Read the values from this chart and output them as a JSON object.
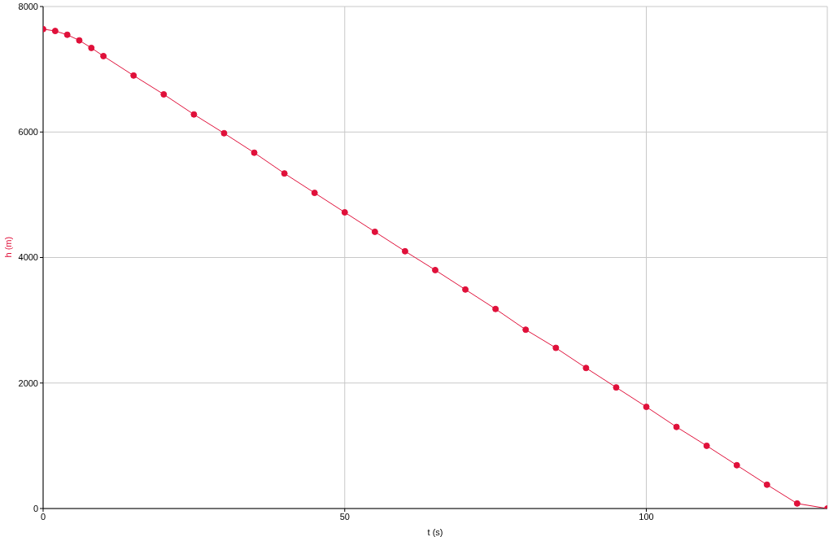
{
  "chart_data": {
    "type": "line",
    "xlabel": "t (s)",
    "ylabel": "h (m)",
    "x": [
      0,
      2,
      4,
      6,
      8,
      10,
      15,
      20,
      25,
      30,
      35,
      40,
      45,
      50,
      55,
      60,
      65,
      70,
      75,
      80,
      85,
      90,
      95,
      100,
      105,
      110,
      115,
      120,
      125,
      130
    ],
    "series": [
      {
        "color": "#e0103a",
        "values": [
          7640,
          7610,
          7550,
          7460,
          7340,
          7210,
          6900,
          6600,
          6280,
          5980,
          5670,
          5340,
          5030,
          4720,
          4410,
          4100,
          3800,
          3490,
          3180,
          2850,
          2560,
          2240,
          1930,
          1620,
          1300,
          1000,
          690,
          380,
          80,
          0
        ]
      }
    ],
    "xlim": [
      0,
      130
    ],
    "xticks": [
      0,
      50,
      100
    ],
    "ylim": [
      0,
      8000
    ],
    "yticks": [
      0,
      2000,
      4000,
      6000,
      8000
    ],
    "grid": true,
    "marker": "circle",
    "line_style": "solid"
  }
}
